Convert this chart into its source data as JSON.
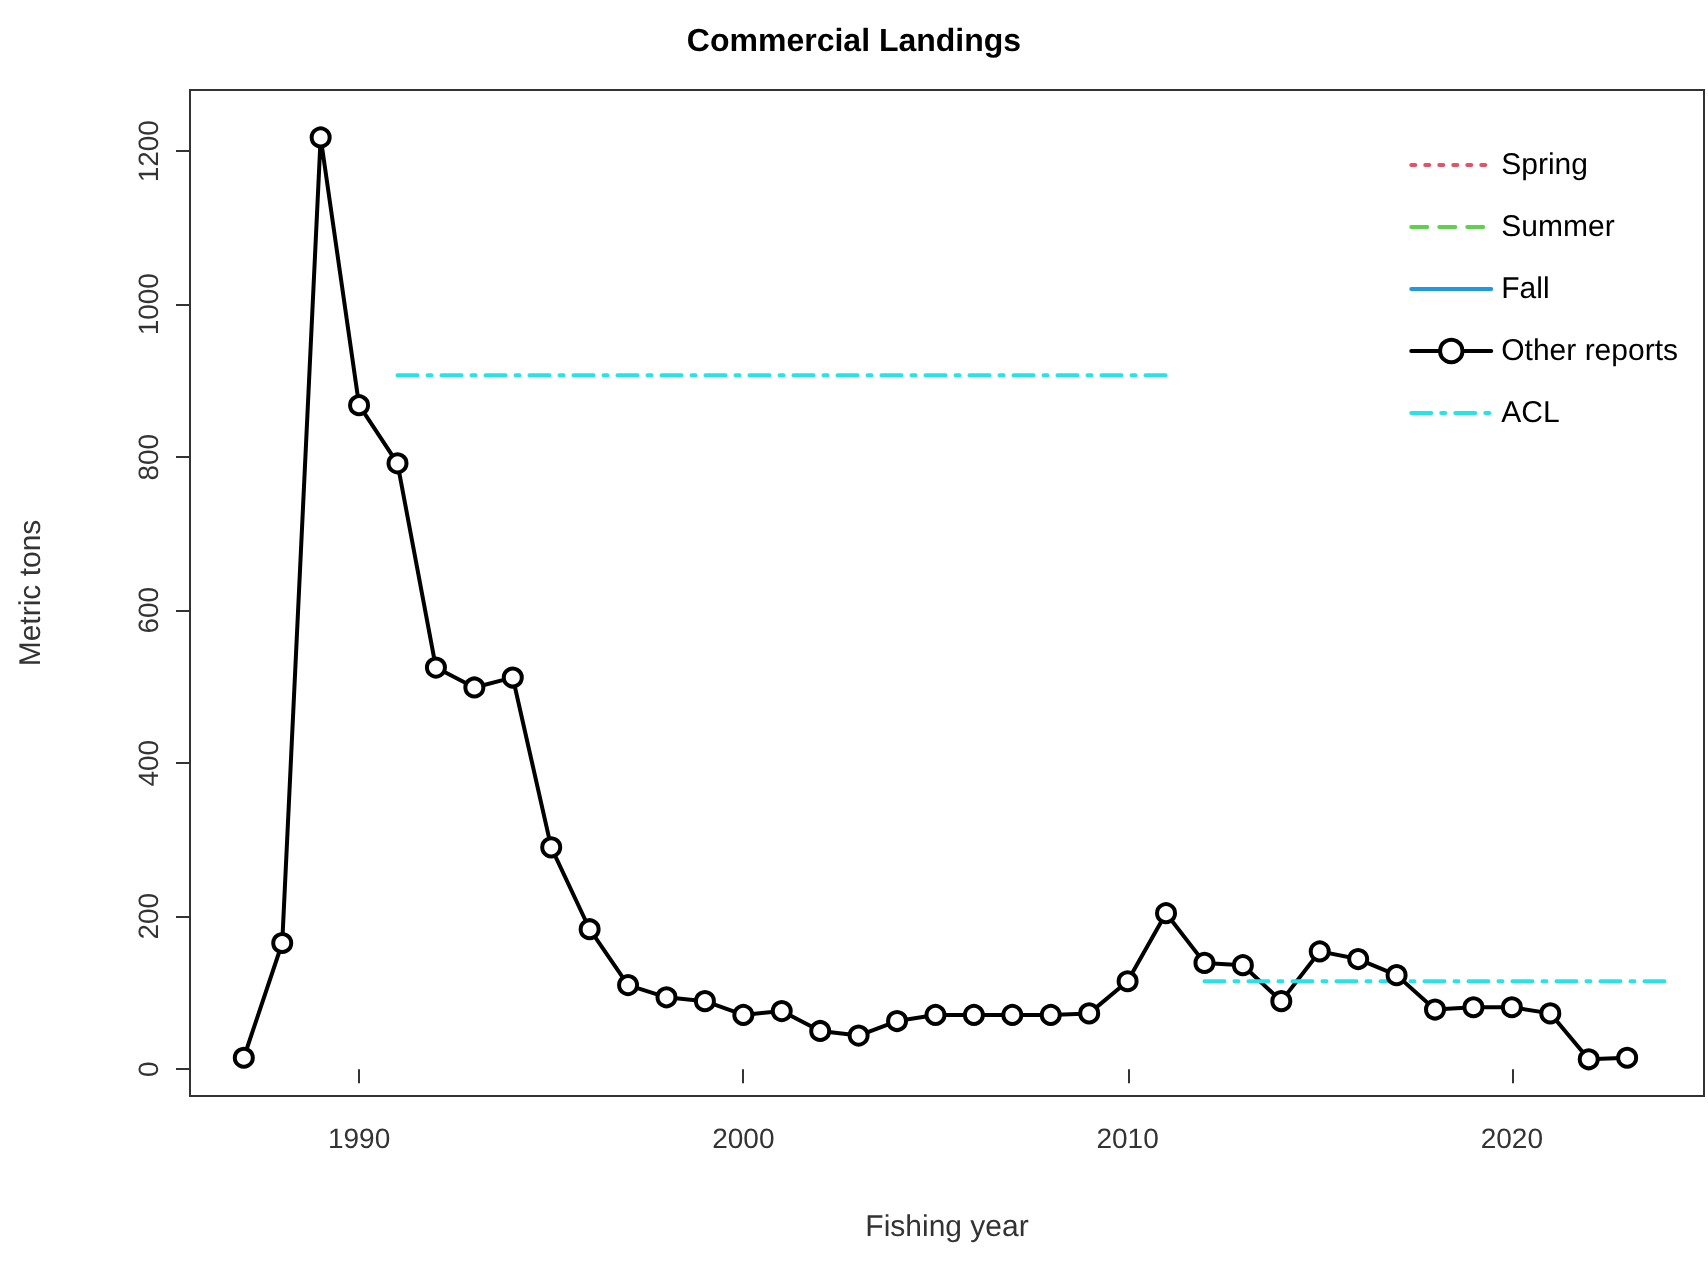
{
  "chart_data": {
    "type": "line",
    "title": "Commercial Landings",
    "xlabel": "Fishing year",
    "ylabel": "Metric tons",
    "xlim": [
      1985.6,
      2025
    ],
    "xticks": [
      1990,
      2000,
      2010,
      2020
    ],
    "ylim": [
      -35,
      1280
    ],
    "yticks": [
      0,
      200,
      400,
      600,
      800,
      1000,
      1200
    ],
    "grid": false,
    "legend": "top right",
    "series": [
      {
        "name": "Spring",
        "color": "#df536b",
        "line_style": "dotted",
        "marker": "none"
      },
      {
        "name": "Summer",
        "color": "#61d04f",
        "line_style": "dashed",
        "marker": "none"
      },
      {
        "name": "Fall",
        "color": "#2297e6",
        "line_style": "solid",
        "marker": "none"
      },
      {
        "name": "Other reports",
        "color": "#000000",
        "line_style": "solid",
        "marker": "circle",
        "x": [
          1987,
          1988,
          1989,
          1990,
          1991,
          1992,
          1993,
          1994,
          1995,
          1996,
          1997,
          1998,
          1999,
          2000,
          2001,
          2002,
          2003,
          2004,
          2005,
          2006,
          2007,
          2008,
          2009,
          2010,
          2011,
          2012,
          2013,
          2014,
          2015,
          2016,
          2017,
          2018,
          2019,
          2020,
          2021,
          2022,
          2023
        ],
        "values": [
          15,
          165,
          1218,
          868,
          792,
          525,
          499,
          512,
          290,
          183,
          110,
          94,
          89,
          71,
          76,
          50,
          44,
          63,
          71,
          71,
          71,
          71,
          73,
          115,
          204,
          139,
          136,
          89,
          154,
          144,
          123,
          78,
          81,
          81,
          73,
          13,
          15
        ]
      },
      {
        "name": "ACL",
        "color": "#28e2e5",
        "line_style": "dashdot",
        "marker": "none",
        "x": [
          1991,
          2011,
          null,
          2012,
          2024
        ],
        "values": [
          907,
          907,
          null,
          115,
          115
        ]
      }
    ]
  }
}
